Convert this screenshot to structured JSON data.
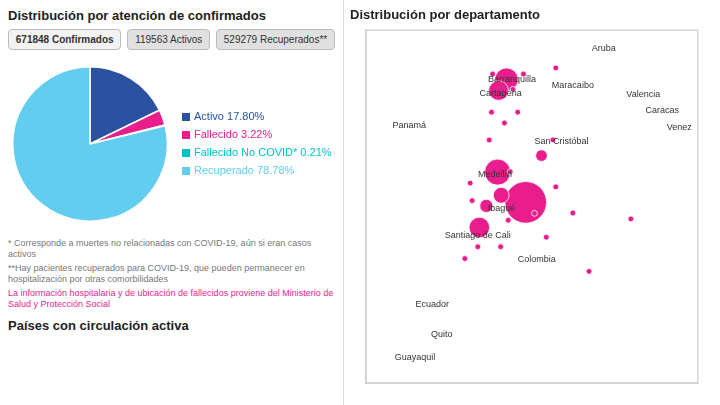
{
  "chart_data": [
    {
      "type": "pie",
      "title": "Distribución por atención de confirmados",
      "categories": [
        "Activo",
        "Fallecido",
        "Fallecido No COVID*",
        "Recuperado"
      ],
      "values": [
        17.8,
        3.22,
        0.21,
        78.78
      ],
      "value_labels": [
        "Activo 17.80%",
        "Fallecido 3.22%",
        "Fallecido No COVID* 0.21%",
        "Recuperado 78.78%"
      ],
      "colors": [
        "#2a52a0",
        "#e91e8c",
        "#00c2cc",
        "#62cdee"
      ],
      "data_labels": true,
      "annotations": [
        "671848 Confirmados",
        "119563 Activos",
        "529279 Recuperados**",
        "* Corresponde a muertes no relacionadas con COVID-19, aún si eran casos activos",
        "**Hay pacientes recuperados para COVID-19, que pueden permanecer en hospitalización por otras comorbilidades",
        "La información hospitalaria y de ubicación de fallecidos proviene del Ministerio de Salud y Protección Social",
        "Países con circulación activa"
      ]
    },
    {
      "type": "bubble",
      "title": "Distribución por departamento",
      "x": [
        -74.08,
        -75.56,
        -76.52,
        -75.09,
        -75.51,
        -73.25,
        -75.37,
        -76.15,
        -73.62,
        -74.9,
        -75.2,
        -76.0,
        -77.28,
        -72.5,
        -74.2,
        -76.6,
        -71.6,
        -72.65,
        -74.75,
        -75.88,
        -73.0,
        -77.0,
        -68.55,
        -75.82,
        -74.5,
        -76.9,
        -72.5,
        -70.75,
        -75.4,
        -75.0
      ],
      "values": [
        4.71,
        6.25,
        3.43,
        10.96,
        10.4,
        7.09,
        5.07,
        4.53,
        4.15,
        6.27,
        8.75,
        7.88,
        1.85,
        11.55,
        11.24,
        2.45,
        4.17,
        7.89,
        10.46,
        9.3,
        2.94,
        5.69,
        3.87,
        11.24,
        9.3,
        4.8,
        5.5,
        1.2,
        2.45,
        3.8
      ],
      "sizes": [
        900,
        350,
        220,
        280,
        200,
        70,
        130,
        90,
        18,
        18,
        18,
        18,
        18,
        18,
        18,
        18,
        18,
        18,
        18,
        18,
        18,
        18,
        18,
        18,
        18,
        18,
        18,
        18,
        18,
        18
      ],
      "color": "#e91e8c",
      "xlim": [
        -82.5,
        -65.0
      ],
      "ylim": [
        -4.5,
        13.5
      ],
      "grid": false,
      "tick_labels": false,
      "annotations": [
        {
          "text": "Aruba",
          "x": -69.97,
          "y": 12.52
        },
        {
          "text": "Barranquilla",
          "x": -74.8,
          "y": 10.96
        },
        {
          "text": "Cartagena",
          "x": -75.4,
          "y": 10.24
        },
        {
          "text": "Medellín",
          "x": -75.7,
          "y": 6.15
        },
        {
          "text": "Ibagué",
          "x": -75.35,
          "y": 4.38
        },
        {
          "text": "Santiago de Cali",
          "x": -76.6,
          "y": 3.0
        },
        {
          "text": "Colombia",
          "x": -73.5,
          "y": 1.8
        },
        {
          "text": "Ecuador",
          "x": -79.0,
          "y": -0.5
        },
        {
          "text": "Quito",
          "x": -78.5,
          "y": -2.0
        },
        {
          "text": "Guayaquil",
          "x": -79.9,
          "y": -3.2
        },
        {
          "text": "Panamá",
          "x": -80.2,
          "y": 8.6
        },
        {
          "text": "Maracaibo",
          "x": -71.6,
          "y": 10.65
        },
        {
          "text": "Valencia",
          "x": -67.9,
          "y": 10.18
        },
        {
          "text": "Caracas",
          "x": -66.9,
          "y": 10.48
        },
        {
          "text": "San Cristóbal",
          "x": -72.2,
          "y": 7.8
        },
        {
          "text": "Venez",
          "x": -66.0,
          "y": 8.5
        }
      ]
    }
  ]
}
